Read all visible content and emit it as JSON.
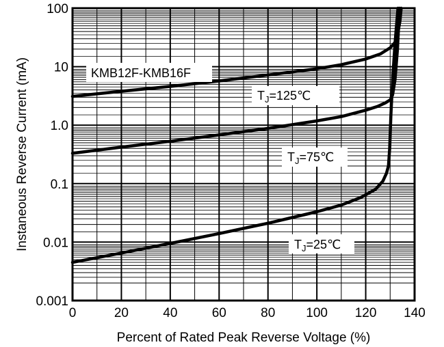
{
  "chart_data": {
    "type": "line",
    "title": "",
    "xlabel": "Percent of Rated Peak Reverse Voltage (%)",
    "ylabel": "Instaneous Reverse Current (mA)",
    "xlim": [
      0,
      140
    ],
    "ylim": [
      0.001,
      100
    ],
    "yscale": "log",
    "grid": true,
    "x_ticks": [
      0,
      20,
      40,
      60,
      80,
      100,
      120,
      140
    ],
    "x_tick_labels": [
      "0",
      "20",
      "40",
      "60",
      "80",
      "100",
      "120",
      "140"
    ],
    "y_ticks": [
      0.001,
      0.01,
      0.1,
      1,
      10,
      100
    ],
    "y_tick_labels": [
      "0.001",
      "0.01",
      "0.1",
      "1.0",
      "10",
      "100"
    ],
    "part_label": "KMB12F-KMB16F",
    "series": [
      {
        "name": "TJ=125℃",
        "label_main": "T",
        "label_sub": "J",
        "label_rest": "=125℃",
        "x": [
          0,
          20,
          40,
          60,
          80,
          100,
          110,
          120,
          126,
          130,
          132,
          133,
          134,
          134.5
        ],
        "y": [
          3.1,
          3.8,
          4.6,
          5.7,
          7.2,
          9.2,
          10.8,
          13.5,
          16.5,
          21,
          26,
          35,
          60,
          100
        ]
      },
      {
        "name": "TJ=75℃",
        "label_main": "T",
        "label_sub": "J",
        "label_rest": "=75℃",
        "x": [
          0,
          20,
          40,
          60,
          80,
          100,
          110,
          120,
          125,
          128,
          130,
          131,
          132,
          133,
          133.8
        ],
        "y": [
          0.33,
          0.42,
          0.53,
          0.68,
          0.88,
          1.18,
          1.4,
          1.8,
          2.1,
          2.4,
          2.7,
          3.3,
          6,
          20,
          100
        ]
      },
      {
        "name": "TJ=25℃",
        "label_main": "T",
        "label_sub": "J",
        "label_rest": "=25℃",
        "x": [
          0,
          20,
          40,
          60,
          80,
          100,
          110,
          118,
          124,
          127,
          128.5,
          129.3,
          129.8,
          130.3,
          131,
          132,
          133.2
        ],
        "y": [
          0.0045,
          0.0065,
          0.0095,
          0.014,
          0.021,
          0.033,
          0.043,
          0.058,
          0.08,
          0.11,
          0.15,
          0.2,
          0.4,
          1.5,
          6,
          25,
          100
        ]
      }
    ]
  }
}
